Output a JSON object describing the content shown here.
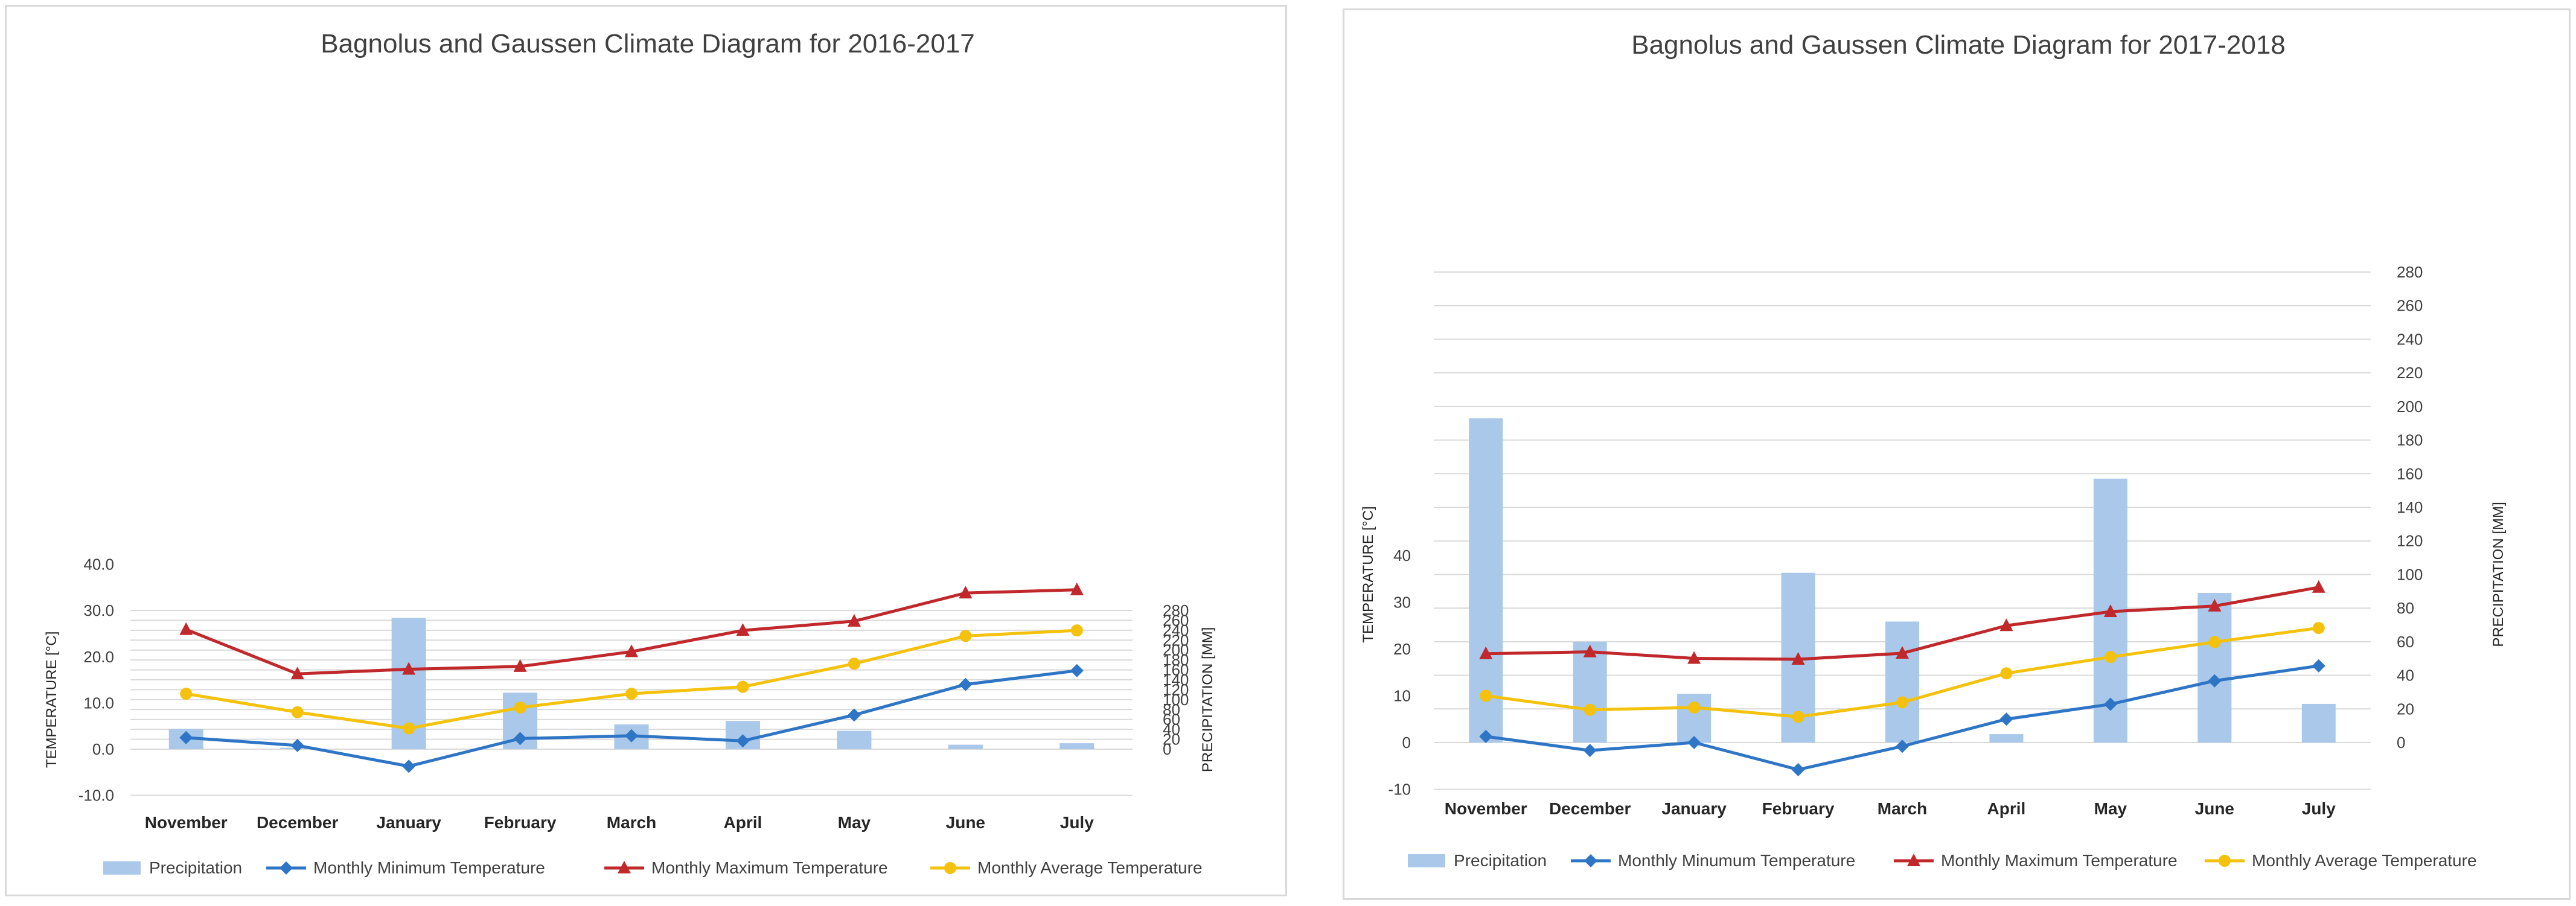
{
  "colors": {
    "precipitation": "#a9c8ea",
    "min_temp": "#2e75c6",
    "max_temp": "#c0282b",
    "avg_temp": "#f4c20d",
    "grid": "#d9d9d9"
  },
  "chart_data": [
    {
      "type": "bar+line",
      "title": "Bagnolus and Gaussen Climate Diagram for 2016-2017",
      "ylabel": "TEMPERATURE [°C]",
      "y2label": "PRECIPITATION [MM]",
      "categories": [
        "November",
        "December",
        "January",
        "February",
        "March",
        "April",
        "May",
        "June",
        "July"
      ],
      "left_ticks": [
        "-10.0",
        "0.0",
        "10.0",
        "20.0",
        "30.0",
        "40.0"
      ],
      "right_ticks": [
        "0",
        "20",
        "40",
        "60",
        "80",
        "100",
        "120",
        "140",
        "160",
        "180",
        "200",
        "220",
        "240",
        "260",
        "280"
      ],
      "precipitation": {
        "name": "Precipitation",
        "values": [
          41,
          3,
          265,
          114,
          50,
          57,
          37,
          9,
          12
        ]
      },
      "series": [
        {
          "name": "Monthly Minimum Temperature",
          "values": [
            2.5,
            0.8,
            -3.7,
            2.3,
            2.9,
            1.8,
            7.4,
            14.0,
            17.0
          ]
        },
        {
          "name": "Monthly Maximum Temperature",
          "values": [
            25.9,
            16.3,
            17.3,
            17.9,
            21.1,
            25.7,
            27.7,
            33.8,
            34.5
          ]
        },
        {
          "name": "Monthly Average Temperature",
          "values": [
            12.0,
            8.0,
            4.5,
            9.0,
            12.0,
            13.5,
            18.5,
            24.5,
            25.7
          ]
        }
      ]
    },
    {
      "type": "bar+line",
      "title": "Bagnolus and Gaussen Climate Diagram for 2017-2018",
      "ylabel": "TEMPERATURE [°C]",
      "y2label": "PRECIPITATION [MM]",
      "categories": [
        "November",
        "December",
        "January",
        "February",
        "March",
        "April",
        "May",
        "June",
        "July"
      ],
      "left_ticks": [
        "-10",
        "0",
        "10",
        "20",
        "30",
        "40"
      ],
      "right_ticks": [
        "0",
        "20",
        "40",
        "60",
        "80",
        "100",
        "120",
        "140",
        "160",
        "180",
        "200",
        "220",
        "240",
        "260",
        "280"
      ],
      "precipitation": {
        "name": "Precipitation",
        "values": [
          193,
          60,
          29,
          101,
          72,
          5,
          157,
          89,
          23
        ]
      },
      "series": [
        {
          "name": "Monthly Minumum Temperature",
          "values": [
            1.3,
            -1.7,
            0.0,
            -5.8,
            -0.8,
            5.0,
            8.2,
            13.2,
            16.4
          ]
        },
        {
          "name": "Monthly Maximum Temperature",
          "values": [
            19.0,
            19.4,
            18.0,
            17.8,
            19.1,
            25.0,
            28.0,
            29.2,
            33.2
          ]
        },
        {
          "name": "Monthly Average Temperature",
          "values": [
            10.0,
            7.0,
            7.5,
            5.5,
            8.6,
            14.8,
            18.3,
            21.5,
            24.5
          ]
        }
      ]
    }
  ]
}
